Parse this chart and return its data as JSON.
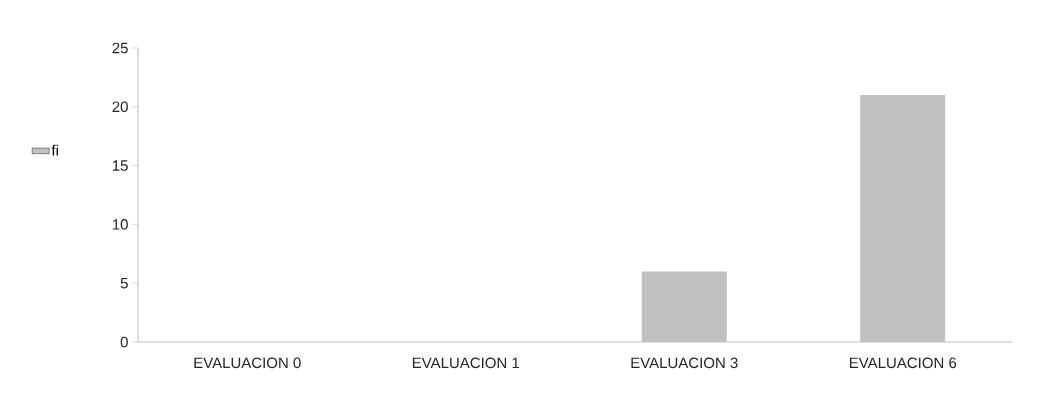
{
  "chart_data": {
    "type": "bar",
    "categories": [
      "EVALUACION 0",
      "EVALUACION 1",
      "EVALUACION 3",
      "EVALUACION 6"
    ],
    "series": [
      {
        "name": "fi",
        "color": "#c0c0c0",
        "values": [
          0,
          0,
          6,
          21
        ]
      }
    ],
    "ylim": [
      0,
      25
    ],
    "yticks": [
      0,
      5,
      10,
      15,
      20,
      25
    ],
    "grid": false,
    "legend": "left"
  }
}
